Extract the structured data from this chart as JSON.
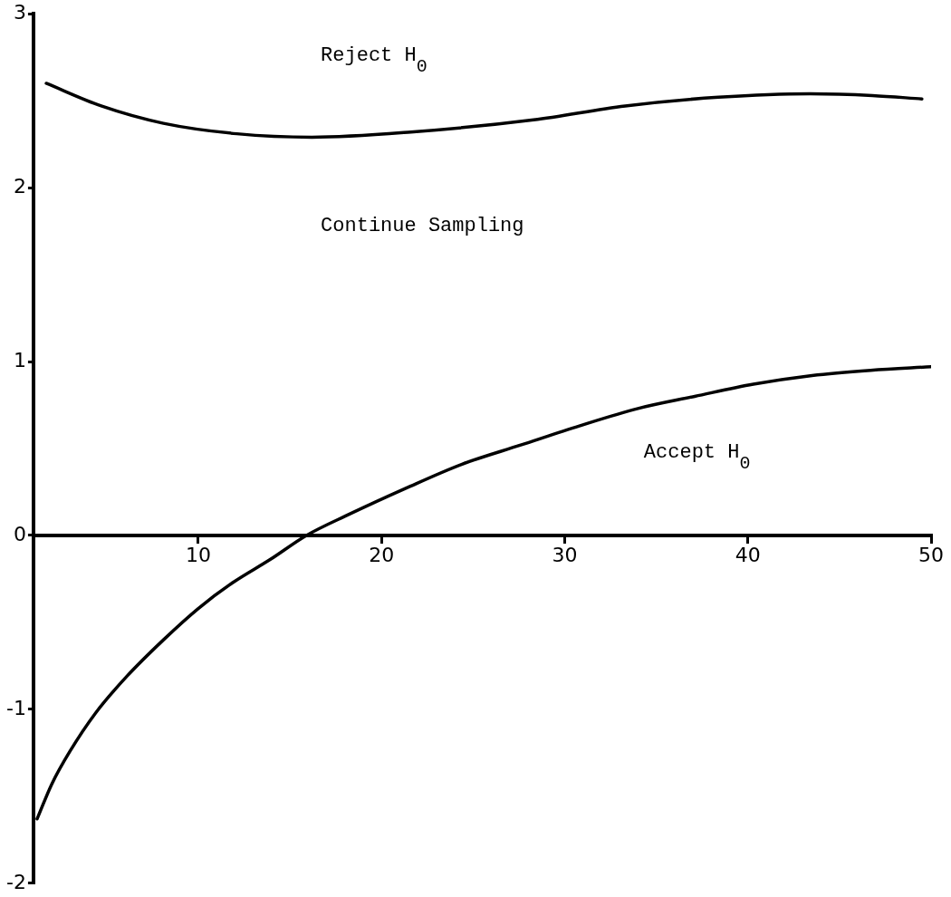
{
  "chart_data": {
    "type": "line",
    "xlim": [
      1,
      50
    ],
    "ylim": [
      -2,
      3
    ],
    "xticks": [
      10,
      20,
      30,
      40,
      50
    ],
    "yticks": [
      -2,
      -1,
      0,
      1,
      2,
      3
    ],
    "grid": false,
    "legend": false,
    "marker": "none",
    "line_style": "solid",
    "series": [
      {
        "color": "#000000",
        "x": [
          1.7,
          4.7,
          8.1,
          12.1,
          16.2,
          21.6,
          28.3,
          33.3,
          38.4,
          43.4,
          46.8,
          49.5
        ],
        "values": [
          2.6,
          2.47,
          2.37,
          2.31,
          2.29,
          2.32,
          2.39,
          2.47,
          2.52,
          2.54,
          2.53,
          2.51
        ]
      },
      {
        "color": "#000000",
        "x": [
          1.2,
          2,
          3,
          4.4,
          6.1,
          8.1,
          10,
          11.9,
          13.9,
          15.9,
          18.2,
          21.3,
          24.4,
          27.6,
          30.8,
          34,
          37.1,
          40.3,
          43.5,
          46.7,
          50
        ],
        "values": [
          -1.63,
          -1.43,
          -1.24,
          -1.02,
          -0.81,
          -0.6,
          -0.42,
          -0.27,
          -0.14,
          0,
          0.12,
          0.27,
          0.41,
          0.52,
          0.63,
          0.73,
          0.8,
          0.87,
          0.92,
          0.95,
          0.97
        ]
      }
    ],
    "annotations": [
      "Reject H$_{0}$",
      "Continue Sampling",
      "Accept H$_{0}$"
    ]
  }
}
